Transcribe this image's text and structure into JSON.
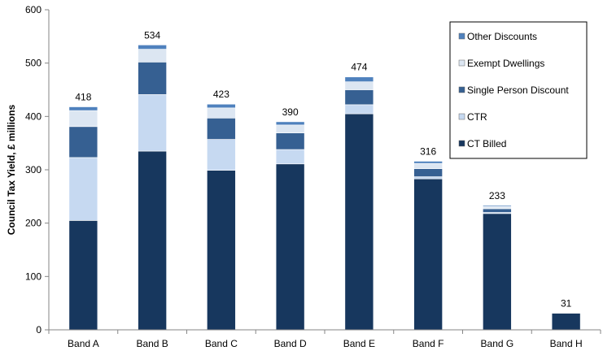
{
  "chart_data": {
    "type": "bar",
    "stacked": true,
    "ylabel": "Council Tax Yield, £ millions",
    "ylim": [
      0,
      600
    ],
    "yticks": [
      0,
      100,
      200,
      300,
      400,
      500,
      600
    ],
    "grid": false,
    "legend_position": "top-right",
    "categories": [
      "Band A",
      "Band B",
      "Band C",
      "Band D",
      "Band E",
      "Band F",
      "Band G",
      "Band H"
    ],
    "totals": [
      "418",
      "534",
      "423",
      "390",
      "474",
      "316",
      "233",
      "31"
    ],
    "series": [
      {
        "name": "CT Billed",
        "color": "#17375e",
        "values": [
          205,
          335,
          299,
          311,
          405,
          283,
          218,
          31
        ]
      },
      {
        "name": "CTR",
        "color": "#c6d9f1",
        "values": [
          118,
          106,
          58,
          27,
          17,
          4,
          2,
          0
        ]
      },
      {
        "name": "Single Person Discount",
        "color": "#366092",
        "values": [
          58,
          61,
          40,
          31,
          28,
          15,
          7,
          0
        ]
      },
      {
        "name": "Exempt Dwellings",
        "color": "#dce6f2",
        "values": [
          30,
          24,
          19,
          15,
          15,
          10,
          4,
          0
        ]
      },
      {
        "name": "Other Discounts",
        "color": "#4f81bd",
        "values": [
          7,
          8,
          7,
          6,
          9,
          4,
          2,
          0
        ]
      }
    ],
    "legend_order": [
      "Other Discounts",
      "Exempt Dwellings",
      "Single Person Discount",
      "CTR",
      "CT Billed"
    ]
  }
}
